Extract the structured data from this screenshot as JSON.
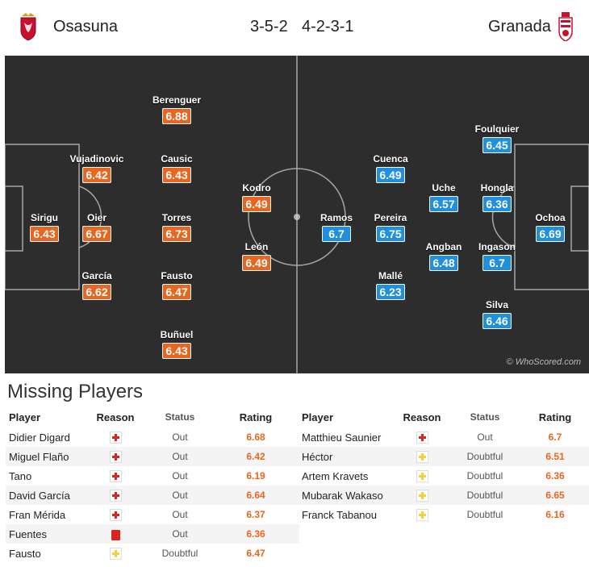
{
  "header": {
    "home_team": "Osasuna",
    "away_team": "Granada",
    "home_formation": "3-5-2",
    "away_formation": "4-2-3-1"
  },
  "colors": {
    "home": "#e8661f",
    "away": "#1f8fe0",
    "pitch": "#2d2d2d"
  },
  "pitch": {
    "watermark": "© WhoScored.com",
    "home_players": [
      {
        "name": "Sirigu",
        "rating": "6.43"
      },
      {
        "name": "Vujadinovic",
        "rating": "6.42"
      },
      {
        "name": "Oier",
        "rating": "6.67"
      },
      {
        "name": "García",
        "rating": "6.62"
      },
      {
        "name": "Berenguer",
        "rating": "6.88"
      },
      {
        "name": "Causic",
        "rating": "6.43"
      },
      {
        "name": "Torres",
        "rating": "6.73"
      },
      {
        "name": "Fausto",
        "rating": "6.47"
      },
      {
        "name": "Buñuel",
        "rating": "6.43"
      },
      {
        "name": "Kodro",
        "rating": "6.49"
      },
      {
        "name": "León",
        "rating": "6.49"
      }
    ],
    "away_players": [
      {
        "name": "Ramos",
        "rating": "6.7"
      },
      {
        "name": "Cuenca",
        "rating": "6.49"
      },
      {
        "name": "Pereira",
        "rating": "6.75"
      },
      {
        "name": "Mallé",
        "rating": "6.23"
      },
      {
        "name": "Uche",
        "rating": "6.57"
      },
      {
        "name": "Angban",
        "rating": "6.48"
      },
      {
        "name": "Foulquier",
        "rating": "6.45"
      },
      {
        "name": "Hongla",
        "rating": "6.36"
      },
      {
        "name": "Ingason",
        "rating": "6.7"
      },
      {
        "name": "Silva",
        "rating": "6.46"
      },
      {
        "name": "Ochoa",
        "rating": "6.69"
      }
    ]
  },
  "missing": {
    "title": "Missing Players",
    "columns": {
      "player": "Player",
      "reason": "Reason",
      "status": "Status",
      "rating": "Rating"
    },
    "home": [
      {
        "player": "Didier Digard",
        "reason": "injury",
        "status": "Out",
        "rating": "6.68"
      },
      {
        "player": "Miguel Flaño",
        "reason": "injury",
        "status": "Out",
        "rating": "6.42"
      },
      {
        "player": "Tano",
        "reason": "injury",
        "status": "Out",
        "rating": "6.19"
      },
      {
        "player": "David García",
        "reason": "injury",
        "status": "Out",
        "rating": "6.64"
      },
      {
        "player": "Fran Mérida",
        "reason": "injury",
        "status": "Out",
        "rating": "6.37"
      },
      {
        "player": "Fuentes",
        "reason": "red-card",
        "status": "Out",
        "rating": "6.36"
      },
      {
        "player": "Fausto",
        "reason": "doubtful",
        "status": "Doubtful",
        "rating": "6.47"
      }
    ],
    "away": [
      {
        "player": "Matthieu Saunier",
        "reason": "injury",
        "status": "Out",
        "rating": "6.7"
      },
      {
        "player": "Héctor",
        "reason": "doubtful",
        "status": "Doubtful",
        "rating": "6.51"
      },
      {
        "player": "Artem Kravets",
        "reason": "doubtful",
        "status": "Doubtful",
        "rating": "6.36"
      },
      {
        "player": "Mubarak Wakaso",
        "reason": "doubtful",
        "status": "Doubtful",
        "rating": "6.65"
      },
      {
        "player": "Franck Tabanou",
        "reason": "doubtful",
        "status": "Doubtful",
        "rating": "6.16"
      }
    ]
  }
}
